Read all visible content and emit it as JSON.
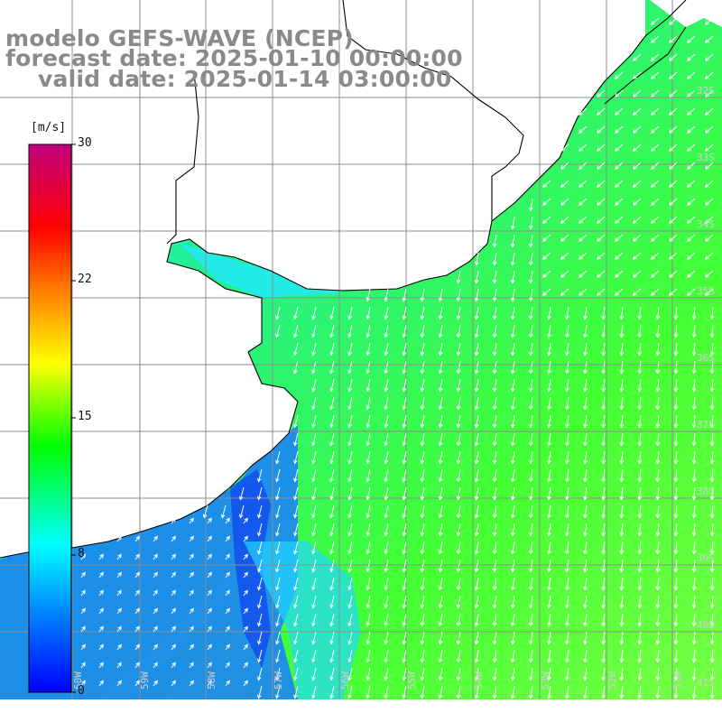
{
  "title": {
    "model": "modelo GEFS-WAVE (NCEP)",
    "forecast": "forecast date: 2025-01-10 00:00:00",
    "valid": "valid date: 2025-01-14 03:00:00"
  },
  "colorbar": {
    "unit": "[m/s]",
    "ticks": [
      "30",
      "22",
      "15",
      "8",
      "0"
    ],
    "colors": [
      "#0000ff",
      "#0080ff",
      "#00ffff",
      "#00ff00",
      "#ffff00",
      "#ff8000",
      "#ff0000",
      "#c0007f"
    ]
  },
  "grid": {
    "lat_labels": [
      "32S",
      "33S",
      "34S",
      "35S",
      "36S",
      "37S",
      "38S",
      "39S",
      "40S",
      "41S"
    ],
    "lon_labels": [
      "60W",
      "59W",
      "58W",
      "57W",
      "56W",
      "55W",
      "54W",
      "53W",
      "52W",
      "51W"
    ]
  },
  "colors": {
    "land": "#ffffff",
    "coast": "#000000",
    "grid": "#8c8c8c",
    "arrows": "#ffffff"
  }
}
